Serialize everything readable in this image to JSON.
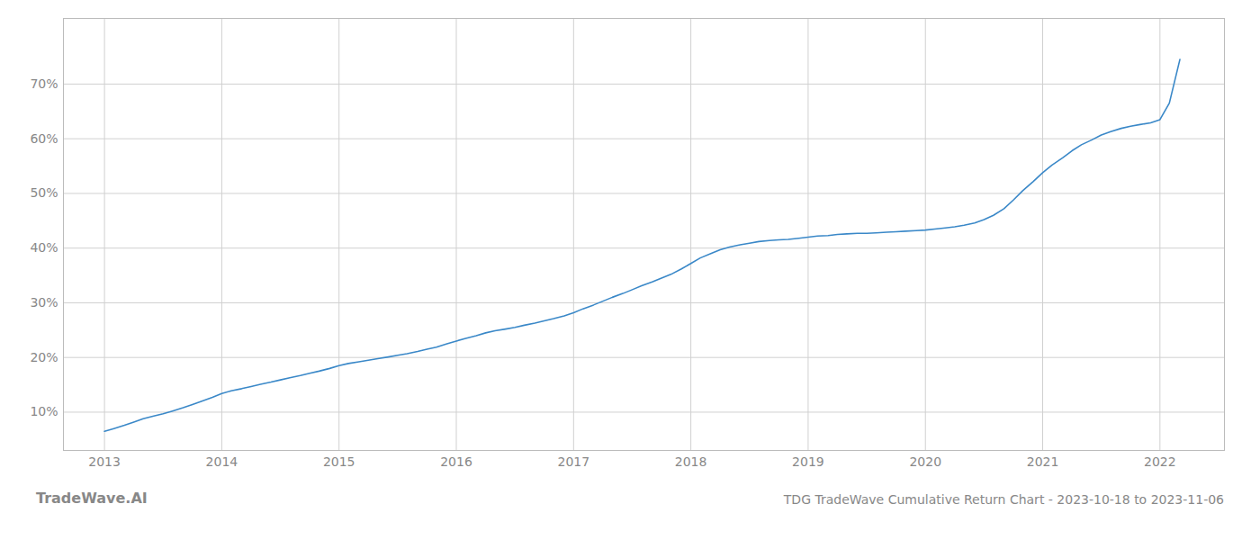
{
  "chart_data": {
    "type": "line",
    "title": "TDG TradeWave Cumulative Return Chart - 2023-10-18 to 2023-11-06",
    "annotations": [
      "TradeWave.AI"
    ],
    "color": "#3a88c8",
    "grid": true,
    "x": [
      2013.0,
      2013.08,
      2013.17,
      2013.25,
      2013.33,
      2013.42,
      2013.5,
      2013.58,
      2013.67,
      2013.75,
      2013.83,
      2013.92,
      2014.0,
      2014.08,
      2014.17,
      2014.25,
      2014.33,
      2014.42,
      2014.5,
      2014.58,
      2014.67,
      2014.75,
      2014.83,
      2014.92,
      2015.0,
      2015.08,
      2015.17,
      2015.25,
      2015.33,
      2015.42,
      2015.5,
      2015.58,
      2015.67,
      2015.75,
      2015.83,
      2015.92,
      2016.0,
      2016.08,
      2016.17,
      2016.25,
      2016.33,
      2016.42,
      2016.5,
      2016.58,
      2016.67,
      2016.75,
      2016.83,
      2016.92,
      2017.0,
      2017.08,
      2017.17,
      2017.25,
      2017.33,
      2017.42,
      2017.5,
      2017.58,
      2017.67,
      2017.75,
      2017.83,
      2017.92,
      2018.0,
      2018.08,
      2018.17,
      2018.25,
      2018.33,
      2018.42,
      2018.5,
      2018.58,
      2018.67,
      2018.75,
      2018.83,
      2018.92,
      2019.0,
      2019.08,
      2019.17,
      2019.25,
      2019.33,
      2019.42,
      2019.5,
      2019.58,
      2019.67,
      2019.75,
      2019.83,
      2019.92,
      2020.0,
      2020.08,
      2020.17,
      2020.25,
      2020.33,
      2020.42,
      2020.5,
      2020.58,
      2020.67,
      2020.75,
      2020.83,
      2020.92,
      2021.0,
      2021.08,
      2021.17,
      2021.25,
      2021.33,
      2021.42,
      2021.5,
      2021.58,
      2021.67,
      2021.75,
      2021.83,
      2021.92,
      2022.0,
      2022.08,
      2022.17
    ],
    "values": [
      6.5,
      7.0,
      7.6,
      8.2,
      8.8,
      9.3,
      9.7,
      10.2,
      10.8,
      11.4,
      12.0,
      12.7,
      13.4,
      13.9,
      14.3,
      14.7,
      15.1,
      15.5,
      15.9,
      16.3,
      16.7,
      17.1,
      17.5,
      18.0,
      18.5,
      18.9,
      19.2,
      19.5,
      19.8,
      20.1,
      20.4,
      20.7,
      21.1,
      21.5,
      21.9,
      22.5,
      23.0,
      23.5,
      24.0,
      24.5,
      24.9,
      25.2,
      25.5,
      25.9,
      26.3,
      26.7,
      27.1,
      27.6,
      28.2,
      28.9,
      29.6,
      30.3,
      31.0,
      31.7,
      32.4,
      33.1,
      33.8,
      34.5,
      35.2,
      36.2,
      37.2,
      38.2,
      39.0,
      39.7,
      40.2,
      40.6,
      40.9,
      41.2,
      41.4,
      41.5,
      41.6,
      41.8,
      42.0,
      42.2,
      42.3,
      42.5,
      42.6,
      42.7,
      42.7,
      42.8,
      42.9,
      43.0,
      43.1,
      43.2,
      43.3,
      43.5,
      43.7,
      43.9,
      44.2,
      44.6,
      45.2,
      46.0,
      47.2,
      48.8,
      50.5,
      52.2,
      53.8,
      55.2,
      56.5,
      57.8,
      58.9,
      59.8,
      60.7,
      61.3,
      61.9,
      62.3,
      62.6,
      62.9,
      63.5,
      66.5,
      74.5
    ],
    "xlim": [
      2012.65,
      2022.55
    ],
    "xticks": [
      2013,
      2014,
      2015,
      2016,
      2017,
      2018,
      2019,
      2020,
      2021,
      2022
    ],
    "ylim": [
      3,
      82
    ],
    "yticks": [
      {
        "value": 10,
        "label": "10%"
      },
      {
        "value": 20,
        "label": "20%"
      },
      {
        "value": 30,
        "label": "30%"
      },
      {
        "value": 40,
        "label": "40%"
      },
      {
        "value": 50,
        "label": "50%"
      },
      {
        "value": 60,
        "label": "60%"
      },
      {
        "value": 70,
        "label": "70%"
      }
    ]
  }
}
